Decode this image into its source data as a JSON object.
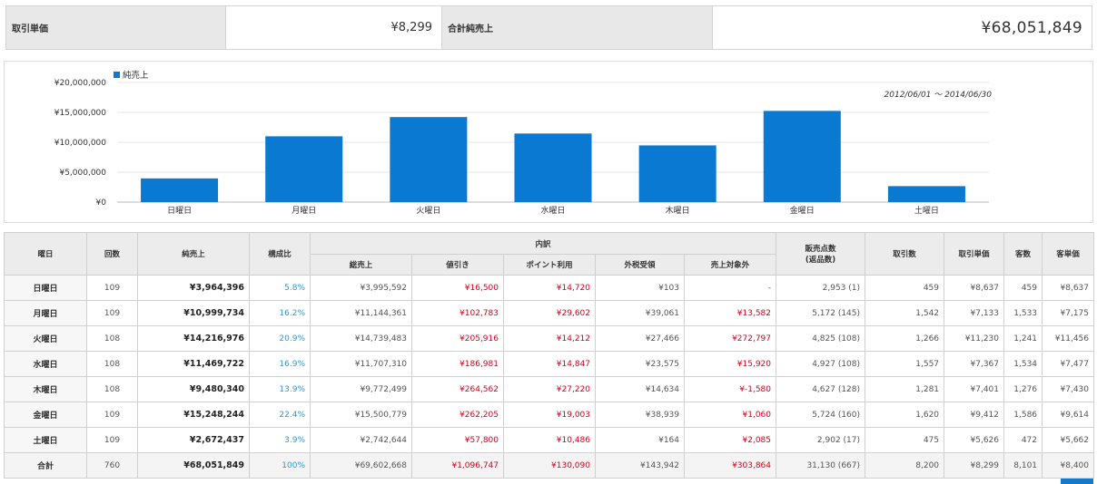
{
  "summary": {
    "unit_price_label": "取引単価",
    "unit_price_value": "¥8,299",
    "total_sales_label": "合計純売上",
    "total_sales_value": "¥68,051,849"
  },
  "chart_data": {
    "type": "bar",
    "legend": "純売上",
    "date_range": "2012/06/01 ～ 2014/06/30",
    "categories": [
      "日曜日",
      "月曜日",
      "火曜日",
      "水曜日",
      "木曜日",
      "金曜日",
      "土曜日"
    ],
    "values": [
      3964396,
      10999734,
      14216976,
      11469722,
      9480340,
      15248244,
      2672437
    ],
    "ylim": [
      0,
      20000000
    ],
    "yticks": [
      "¥20,000,000",
      "¥15,000,000",
      "¥10,000,000",
      "¥5,000,000",
      "¥0"
    ],
    "color": "#0a79d1",
    "grid": true
  },
  "table": {
    "headers": {
      "day": "曜日",
      "count": "回数",
      "net_sales": "純売上",
      "ratio": "構成比",
      "breakdown": "内訳",
      "gross": "総売上",
      "discount": "値引き",
      "points": "ポイント利用",
      "tax": "外税受領",
      "excluded": "売上対象外",
      "items": "販売点数",
      "items_sub": "(返品数)",
      "transactions": "取引数",
      "unit_price": "取引単価",
      "customers": "客数",
      "customer_price": "客単価"
    },
    "rows": [
      {
        "day": "日曜日",
        "count": "109",
        "net": "¥3,964,396",
        "ratio": "5.8%",
        "gross": "¥3,995,592",
        "discount": "¥16,500",
        "points": "¥14,720",
        "tax": "¥103",
        "excluded": "-",
        "items": "2,953 (1)",
        "trans": "459",
        "unit": "¥8,637",
        "cust": "459",
        "cprice": "¥8,637"
      },
      {
        "day": "月曜日",
        "count": "109",
        "net": "¥10,999,734",
        "ratio": "16.2%",
        "gross": "¥11,144,361",
        "discount": "¥102,783",
        "points": "¥29,602",
        "tax": "¥39,061",
        "excluded": "¥13,582",
        "items": "5,172 (145)",
        "trans": "1,542",
        "unit": "¥7,133",
        "cust": "1,533",
        "cprice": "¥7,175"
      },
      {
        "day": "火曜日",
        "count": "108",
        "net": "¥14,216,976",
        "ratio": "20.9%",
        "gross": "¥14,739,483",
        "discount": "¥205,916",
        "points": "¥14,212",
        "tax": "¥27,466",
        "excluded": "¥272,797",
        "items": "4,825 (108)",
        "trans": "1,266",
        "unit": "¥11,230",
        "cust": "1,241",
        "cprice": "¥11,456"
      },
      {
        "day": "水曜日",
        "count": "108",
        "net": "¥11,469,722",
        "ratio": "16.9%",
        "gross": "¥11,707,310",
        "discount": "¥186,981",
        "points": "¥14,847",
        "tax": "¥23,575",
        "excluded": "¥15,920",
        "items": "4,927 (108)",
        "trans": "1,557",
        "unit": "¥7,367",
        "cust": "1,534",
        "cprice": "¥7,477"
      },
      {
        "day": "木曜日",
        "count": "108",
        "net": "¥9,480,340",
        "ratio": "13.9%",
        "gross": "¥9,772,499",
        "discount": "¥264,562",
        "points": "¥27,220",
        "tax": "¥14,634",
        "excluded": "¥-1,580",
        "items": "4,627 (128)",
        "trans": "1,281",
        "unit": "¥7,401",
        "cust": "1,276",
        "cprice": "¥7,430"
      },
      {
        "day": "金曜日",
        "count": "109",
        "net": "¥15,248,244",
        "ratio": "22.4%",
        "gross": "¥15,500,779",
        "discount": "¥262,205",
        "points": "¥19,003",
        "tax": "¥38,939",
        "excluded": "¥1,060",
        "items": "5,724 (160)",
        "trans": "1,620",
        "unit": "¥9,412",
        "cust": "1,586",
        "cprice": "¥9,614"
      },
      {
        "day": "土曜日",
        "count": "109",
        "net": "¥2,672,437",
        "ratio": "3.9%",
        "gross": "¥2,742,644",
        "discount": "¥57,800",
        "points": "¥10,486",
        "tax": "¥164",
        "excluded": "¥2,085",
        "items": "2,902 (17)",
        "trans": "475",
        "unit": "¥5,626",
        "cust": "472",
        "cprice": "¥5,662"
      }
    ],
    "total": {
      "day": "合計",
      "count": "760",
      "net": "¥68,051,849",
      "ratio": "100%",
      "gross": "¥69,602,668",
      "discount": "¥1,096,747",
      "points": "¥130,090",
      "tax": "¥143,942",
      "excluded": "¥303,864",
      "items": "31,130 (667)",
      "trans": "8,200",
      "unit": "¥8,299",
      "cust": "8,101",
      "cprice": "¥8,400"
    }
  }
}
